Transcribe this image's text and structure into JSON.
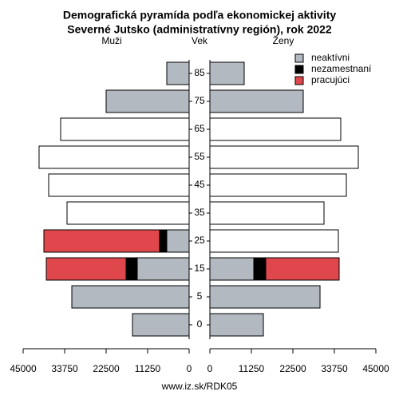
{
  "chart_data": {
    "type": "pyramid",
    "title": "Demografická pyramída podľa ekonomickej aktivity",
    "subtitle": "Severné Jutsko (administratívny región), rok 2022",
    "left_label": "Muži",
    "center_label": "Vek",
    "right_label": "Ženy",
    "source": "www.iz.sk/RDK05",
    "categories": [
      "0",
      "5",
      "15",
      "25",
      "35",
      "45",
      "55",
      "65",
      "75",
      "85"
    ],
    "series": [
      {
        "name": "neaktívni",
        "color": "#b3b9c1",
        "values_left": [
          15360,
          31800,
          14060,
          6060,
          null,
          null,
          null,
          null,
          22500,
          6060
        ],
        "values_right": [
          14500,
          29860,
          11900,
          null,
          null,
          null,
          null,
          null,
          25310,
          9300
        ]
      },
      {
        "name": "nezamestnaní",
        "color": "#000000",
        "values_left": [
          null,
          null,
          3030,
          1950,
          null,
          null,
          null,
          null,
          null,
          null
        ],
        "values_right": [
          null,
          null,
          3245,
          null,
          null,
          null,
          null,
          null,
          null,
          null
        ]
      },
      {
        "name": "pracujúci",
        "color": "#e0474c",
        "values_left": [
          null,
          null,
          21630,
          31370,
          null,
          null,
          null,
          null,
          null,
          null
        ],
        "values_right": [
          null,
          null,
          19900,
          null,
          null,
          null,
          null,
          null,
          null,
          null
        ]
      },
      {
        "color": "#ffffff",
        "values_left": [
          null,
          null,
          null,
          null,
          33100,
          38080,
          40680,
          34830,
          null,
          null
        ],
        "values_right": [
          null,
          null,
          null,
          34830,
          30940,
          37000,
          40240,
          35480,
          null,
          null
        ]
      }
    ],
    "xlim": [
      0,
      45000
    ],
    "xticks": [
      0,
      11250,
      22500,
      33750,
      45000
    ]
  }
}
